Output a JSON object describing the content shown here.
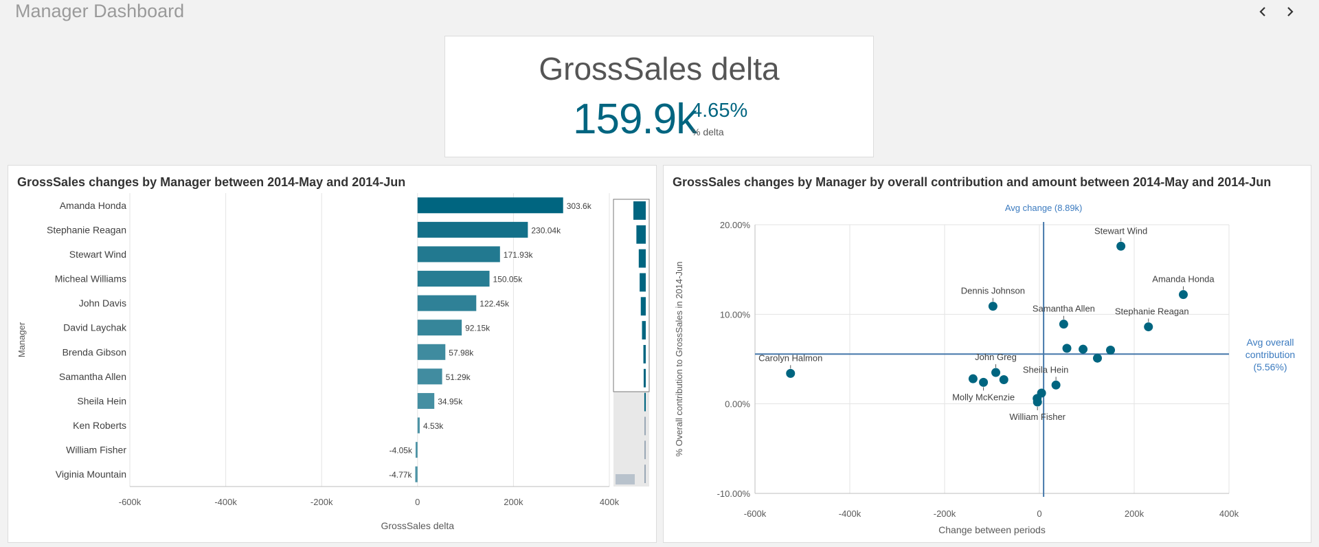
{
  "app": {
    "title": "Manager Dashboard",
    "nav": {
      "prev_icon": "chevron-left-icon",
      "next_icon": "chevron-right-icon"
    }
  },
  "kpi": {
    "title": "GrossSales delta",
    "value": "159.9k",
    "pct_value": "4.65%",
    "pct_label": "% delta"
  },
  "colors": {
    "accent": "#006580",
    "ref_line": "#4477aa",
    "ref_text": "#3a7abf"
  },
  "bar_panel": {
    "title": "GrossSales changes by Manager between 2014-May and 2014-Jun"
  },
  "scatter_panel": {
    "title": "GrossSales changes by Manager by overall contribution and amount between 2014-May and 2014-Jun"
  },
  "chart_data": [
    {
      "type": "bar",
      "orientation": "horizontal",
      "categories": [
        "Amanda Honda",
        "Stephanie Reagan",
        "Stewart Wind",
        "Micheal Williams",
        "John Davis",
        "David Laychak",
        "Brenda Gibson",
        "Samantha Allen",
        "Sheila Hein",
        "Ken Roberts",
        "William Fisher",
        "Viginia Mountain"
      ],
      "values": [
        303600,
        230040,
        171930,
        150050,
        122450,
        92150,
        57980,
        51290,
        34950,
        4530,
        -4050,
        -4770
      ],
      "data_labels": [
        "303.6k",
        "230.04k",
        "171.93k",
        "150.05k",
        "122.45k",
        "92.15k",
        "57.98k",
        "51.29k",
        "34.95k",
        "4.53k",
        "-4.05k",
        "-4.77k"
      ],
      "xlabel": "GrossSales delta",
      "ylabel": "Manager",
      "xlim": [
        -600000,
        400000
      ],
      "xticks": [
        -600000,
        -400000,
        -200000,
        0,
        200000,
        400000
      ],
      "xtick_labels": [
        "-600k",
        "-400k",
        "-200k",
        "0",
        "200k",
        "400k"
      ],
      "grid": true
    },
    {
      "type": "scatter",
      "xlabel": "Change between periods",
      "ylabel": "% Overall contribution to GrossSales in 2014-Jun",
      "xlim": [
        -600000,
        400000
      ],
      "ylim": [
        -10,
        20
      ],
      "xticks": [
        -600000,
        -400000,
        -200000,
        0,
        200000,
        400000
      ],
      "xtick_labels": [
        "-600k",
        "-400k",
        "-200k",
        "0",
        "200k",
        "400k"
      ],
      "yticks": [
        -10,
        0,
        10,
        20
      ],
      "ytick_labels": [
        "-10.00%",
        "0.00%",
        "10.00%",
        "20.00%"
      ],
      "reference_lines": [
        {
          "axis": "x",
          "value": 8890,
          "label": "Avg change (8.89k)"
        },
        {
          "axis": "y",
          "value": 5.56,
          "label": "Avg overall contribution (5.56%)"
        }
      ],
      "points": [
        {
          "name": "Stewart Wind",
          "x": 171930,
          "y": 17.6,
          "label": "Stewart Wind"
        },
        {
          "name": "Amanda Honda",
          "x": 303600,
          "y": 12.2,
          "label": "Amanda Honda"
        },
        {
          "name": "Dennis Johnson",
          "x": -98000,
          "y": 10.9,
          "label": "Dennis Johnson"
        },
        {
          "name": "Samantha Allen",
          "x": 51290,
          "y": 8.9,
          "label": "Samantha Allen"
        },
        {
          "name": "Stephanie Reagan",
          "x": 230040,
          "y": 8.6,
          "label": "Stephanie Reagan"
        },
        {
          "name": "Carolyn Halmon",
          "x": -525000,
          "y": 3.4,
          "label": "Carolyn Halmon"
        },
        {
          "name": "John Greg",
          "x": -92000,
          "y": 3.5,
          "label": "John Greg"
        },
        {
          "name": "Sheila Hein",
          "x": 34950,
          "y": 2.1,
          "label": "Sheila Hein"
        },
        {
          "name": "Molly McKenzie",
          "x": -118000,
          "y": 2.4,
          "label": "Molly McKenzie"
        },
        {
          "name": "William Fisher",
          "x": -4050,
          "y": 0.2,
          "label": "William Fisher"
        },
        {
          "name": "David Laychak",
          "x": 92150,
          "y": 6.1,
          "label": ""
        },
        {
          "name": "Micheal Williams",
          "x": 150050,
          "y": 6.0,
          "label": ""
        },
        {
          "name": "John Davis",
          "x": 122450,
          "y": 5.1,
          "label": ""
        },
        {
          "name": "Brenda Gibson",
          "x": 57980,
          "y": 6.2,
          "label": ""
        },
        {
          "name": "Ken Roberts",
          "x": 4530,
          "y": 1.2,
          "label": ""
        },
        {
          "name": "Viginia Mountain",
          "x": -4770,
          "y": 0.6,
          "label": ""
        },
        {
          "name": "",
          "x": -140000,
          "y": 2.8,
          "label": ""
        },
        {
          "name": "",
          "x": -75000,
          "y": 2.7,
          "label": ""
        }
      ]
    }
  ]
}
